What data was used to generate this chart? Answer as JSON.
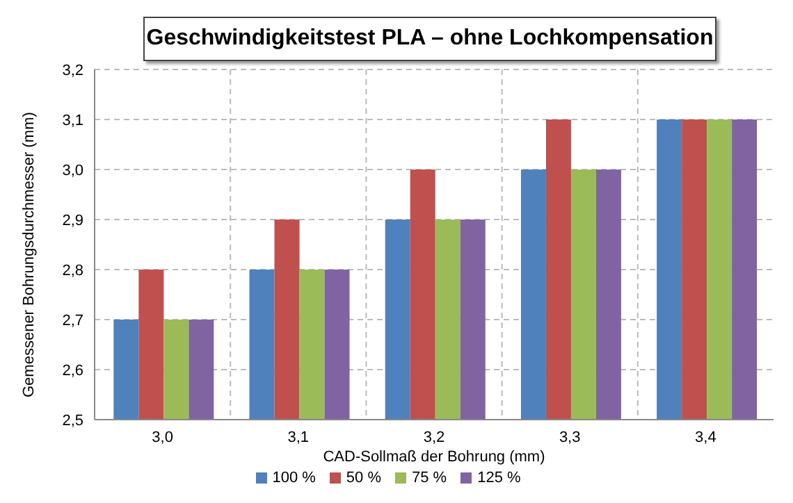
{
  "chart_data": {
    "type": "bar",
    "title": "Geschwindigkeitstest PLA – ohne Lochkompensation",
    "xlabel": "CAD-Sollmaß der Bohrung (mm)",
    "ylabel": "Gemessener Bohrungsdurchmesser (mm)",
    "categories": [
      "3,0",
      "3,1",
      "3,2",
      "3,3",
      "3,4"
    ],
    "series": [
      {
        "name": "100 %",
        "color": "#4f81bd",
        "values": [
          2.7,
          2.8,
          2.9,
          3.0,
          3.1
        ]
      },
      {
        "name": "50 %",
        "color": "#c0504d",
        "values": [
          2.8,
          2.9,
          3.0,
          3.1,
          3.1
        ]
      },
      {
        "name": "75 %",
        "color": "#9bbb59",
        "values": [
          2.7,
          2.8,
          2.9,
          3.0,
          3.1
        ]
      },
      {
        "name": "125 %",
        "color": "#8064a2",
        "values": [
          2.7,
          2.8,
          2.9,
          3.0,
          3.1
        ]
      }
    ],
    "ylim": [
      2.5,
      3.2
    ],
    "yticks": [
      {
        "value": 2.5,
        "label": "2,5"
      },
      {
        "value": 2.6,
        "label": "2,6"
      },
      {
        "value": 2.7,
        "label": "2,7"
      },
      {
        "value": 2.8,
        "label": "2,8"
      },
      {
        "value": 2.9,
        "label": "2,9"
      },
      {
        "value": 3.0,
        "label": "3,0"
      },
      {
        "value": 3.1,
        "label": "3,1"
      },
      {
        "value": 3.2,
        "label": "3,2"
      }
    ],
    "grid": true,
    "legend": "bottom"
  }
}
